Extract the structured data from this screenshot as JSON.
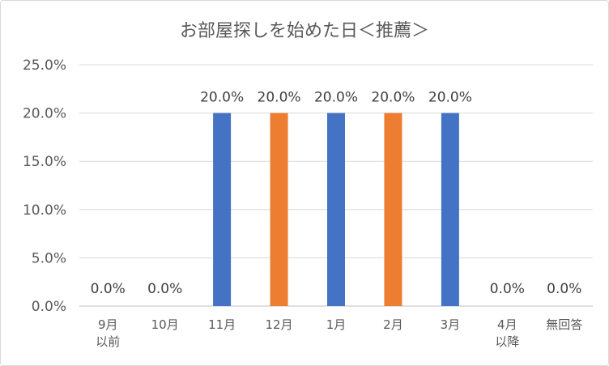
{
  "chart_data": {
    "type": "bar",
    "title": "お部屋探しを始めた日＜推薦＞",
    "xlabel": "",
    "ylabel": "",
    "ylim": [
      0,
      0.25
    ],
    "yticks": [
      "0.0%",
      "5.0%",
      "10.0%",
      "15.0%",
      "20.0%",
      "25.0%"
    ],
    "grid": true,
    "legend": "none",
    "categories": [
      [
        "9月",
        "以前"
      ],
      [
        "10月"
      ],
      [
        "11月"
      ],
      [
        "12月"
      ],
      [
        "1月"
      ],
      [
        "2月"
      ],
      [
        "3月"
      ],
      [
        "4月",
        "以降"
      ],
      [
        "無回答"
      ]
    ],
    "values": [
      0.0,
      0.0,
      0.2,
      0.2,
      0.2,
      0.2,
      0.2,
      0.0,
      0.0
    ],
    "data_labels": [
      "0.0%",
      "0.0%",
      "20.0%",
      "20.0%",
      "20.0%",
      "20.0%",
      "20.0%",
      "0.0%",
      "0.0%"
    ],
    "bar_colors": [
      "#4472C4",
      "#4472C4",
      "#4472C4",
      "#ED7D31",
      "#4472C4",
      "#ED7D31",
      "#4472C4",
      "#4472C4",
      "#4472C4"
    ]
  }
}
